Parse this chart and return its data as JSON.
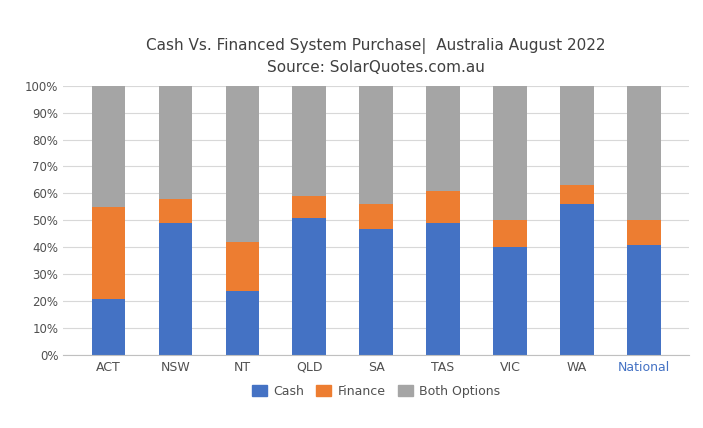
{
  "categories": [
    "ACT",
    "NSW",
    "NT",
    "QLD",
    "SA",
    "TAS",
    "VIC",
    "WA",
    "National"
  ],
  "cash": [
    21,
    49,
    24,
    51,
    47,
    49,
    40,
    56,
    41
  ],
  "finance": [
    34,
    9,
    18,
    8,
    9,
    12,
    10,
    7,
    9
  ],
  "both": [
    45,
    42,
    58,
    41,
    44,
    39,
    50,
    37,
    50
  ],
  "cash_color": "#4472C4",
  "finance_color": "#ED7D31",
  "both_color": "#A5A5A5",
  "title_line1": "Cash Vs. Financed System Purchase|  Australia August 2022",
  "title_line2": "Source: SolarQuotes.com.au",
  "title_color": "#404040",
  "background_color": "#FFFFFF",
  "ytick_labels": [
    "0%",
    "10%",
    "20%",
    "30%",
    "40%",
    "50%",
    "60%",
    "70%",
    "80%",
    "90%",
    "100%"
  ],
  "legend_labels": [
    "Cash",
    "Finance",
    "Both Options"
  ],
  "national_label_color": "#4472C4",
  "bar_width": 0.5
}
